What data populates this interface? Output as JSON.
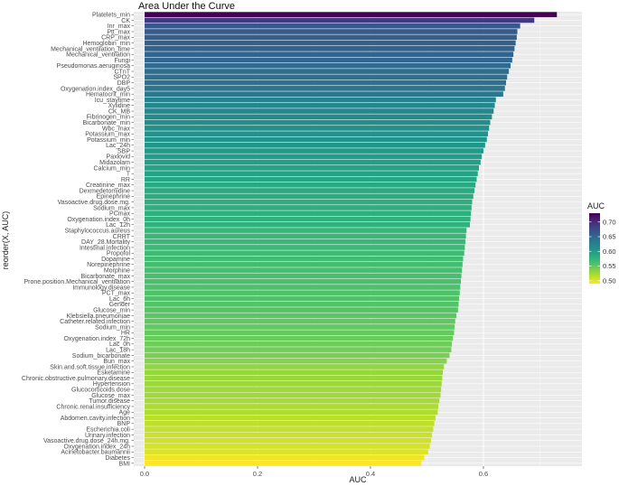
{
  "chart_data": {
    "type": "bar",
    "orientation": "horizontal",
    "title": "Area Under the Curve",
    "xlabel": "AUC",
    "ylabel": "reorder(X, AUC)",
    "xlim": [
      0,
      0.75
    ],
    "x_ticks": [
      "0.0",
      "0.2",
      "0.4",
      "0.6"
    ],
    "grid": true,
    "legend": {
      "title": "AUC",
      "position": "right",
      "labels": [
        "0.70",
        "0.65",
        "0.60",
        "0.55",
        "0.50"
      ],
      "range": [
        0.49,
        0.73
      ]
    },
    "categories": [
      "Platelets_min",
      "CK",
      "Inr_max",
      "Ptt_max",
      "CRP_max",
      "Hemoglobin_min",
      "Mechanical_ventilation_time",
      "Mechanical_ventilation",
      "Fungi",
      "Pseudomonas.aeruginosa",
      "CTnT",
      "SPO2",
      "DBP",
      "Oxygenation.index_day5",
      "Hematocrit_min",
      "Icu_staytime",
      "Xylidine",
      "CK_MB",
      "Fibrinogen_min",
      "Bicarbonate_min",
      "Wbc_max",
      "Potassium_max",
      "Potassium_min",
      "Lac_24h",
      "SBP",
      "Paxlovid",
      "Midazolam",
      "Calcium_min",
      "T",
      "RR",
      "Creatinine_max",
      "Dexmedetomidine",
      "Epinephrine",
      "Vasoactive.drug.dose.mg.",
      "Sodium_max",
      "PCmax",
      "Oxygenation.index_0h",
      "Lac_12h",
      "Staphylococcus.aureus",
      "CRRT",
      "DAY_28.Mortality",
      "Intestinal.infection",
      "Propofol",
      "Dopamine",
      "Norepinephrine",
      "Morphine",
      "Bicarbonate_max",
      "Prone.position.Mechanical_ventilation",
      "Immunology.disease",
      "PCT_max",
      "Lac_6h",
      "Gender",
      "Glucose_min",
      "Klebsiella.pneumoniae",
      "Catheter.related.infection",
      "Sodium_min",
      "HR",
      "Oxygenation.index_72h",
      "Lac_0h",
      "Lac_18h",
      "Sodium_bicarbonate",
      "Bun_max",
      "Skin.and.soft.tissue.infection",
      "Esketamine",
      "Chronic.obstructive.pulmonary.disease",
      "Hypertension",
      "Glucocorticoids.dose",
      "Glucose_max",
      "Tumor.disease",
      "Chronic.renal.insufficiency",
      "Age",
      "Abdomen.cavity.infection",
      "BNP",
      "Escherichia.coli",
      "Urinary.infection",
      "Vasoactive.drug.dose_24h.mg.",
      "Oxygenation.index_24h",
      "Acinetobacter.baumannii",
      "Diabetes",
      "BMI"
    ],
    "values": [
      0.73,
      0.69,
      0.665,
      0.66,
      0.659,
      0.657,
      0.655,
      0.653,
      0.651,
      0.648,
      0.645,
      0.642,
      0.64,
      0.638,
      0.635,
      0.622,
      0.62,
      0.618,
      0.615,
      0.612,
      0.61,
      0.608,
      0.606,
      0.603,
      0.6,
      0.597,
      0.595,
      0.592,
      0.59,
      0.588,
      0.586,
      0.584,
      0.582,
      0.58,
      0.579,
      0.578,
      0.577,
      0.576,
      0.57,
      0.569,
      0.568,
      0.567,
      0.566,
      0.564,
      0.563,
      0.562,
      0.561,
      0.56,
      0.559,
      0.558,
      0.557,
      0.556,
      0.555,
      0.552,
      0.55,
      0.549,
      0.548,
      0.546,
      0.544,
      0.543,
      0.54,
      0.535,
      0.53,
      0.528,
      0.527,
      0.526,
      0.525,
      0.524,
      0.522,
      0.52,
      0.519,
      0.515,
      0.513,
      0.511,
      0.509,
      0.507,
      0.505,
      0.502,
      0.495,
      0.49
    ]
  }
}
